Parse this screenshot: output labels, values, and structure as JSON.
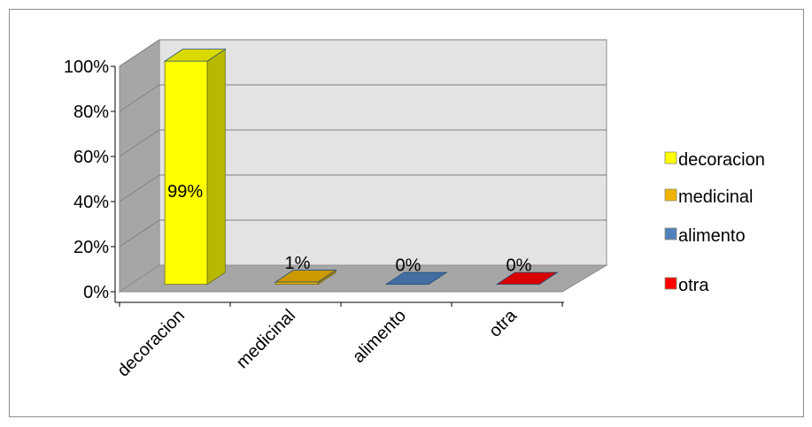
{
  "chart_data": {
    "type": "bar",
    "categories": [
      "decoracion",
      "medicinal",
      "alimento",
      "otra"
    ],
    "values": [
      99,
      1,
      0,
      0
    ],
    "data_labels": [
      "99%",
      "1%",
      "0%",
      "0%"
    ],
    "colors": [
      "#ffff00",
      "#f0b400",
      "#4f81bd",
      "#ff0000"
    ],
    "yticks": [
      "0%",
      "20%",
      "40%",
      "60%",
      "80%",
      "100%"
    ],
    "ylim": [
      0,
      100
    ],
    "legend": [
      "decoracion",
      "medicinal",
      "alimento",
      "otra"
    ],
    "legend_position": "right",
    "grid": true,
    "three_d": true
  }
}
